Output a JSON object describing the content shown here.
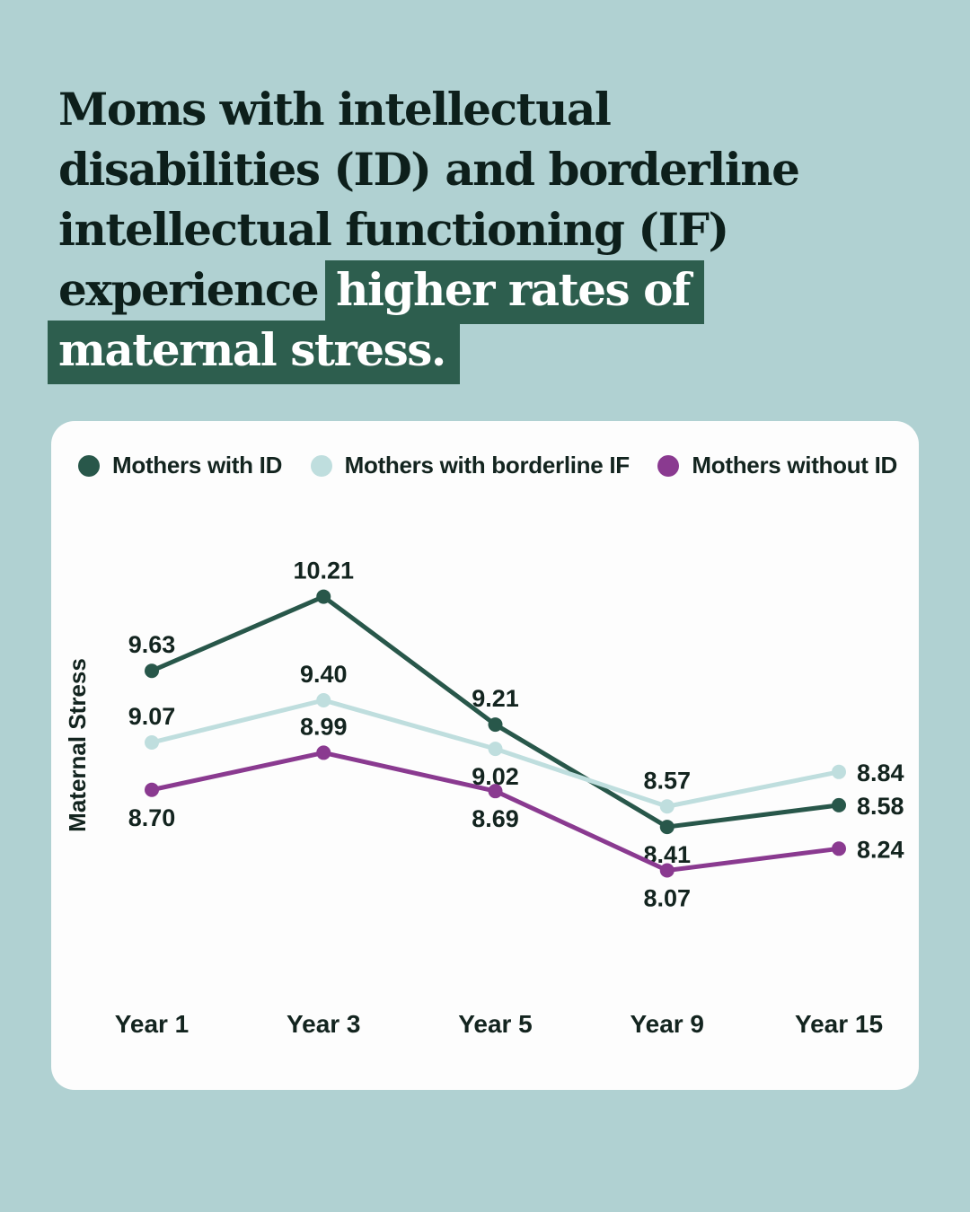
{
  "colors": {
    "background": "#b0d1d2",
    "card": "#fdfdfd",
    "ink": "#0d1f1b",
    "highlight": "#2d5e4e"
  },
  "headline": {
    "line1": {
      "plain": "Moms with intellectual",
      "highlight": ""
    },
    "line2": {
      "plain": "disabilities (ID) and borderline",
      "highlight": ""
    },
    "line3": {
      "plain": "intellectual functioning (IF)",
      "highlight": ""
    },
    "line4": {
      "plain": "experience",
      "highlight": "higher rates of"
    },
    "line5": {
      "plain": "",
      "highlight": "maternal stress."
    }
  },
  "chart_data": {
    "type": "line",
    "title": "",
    "xlabel": "",
    "ylabel": "Maternal Stress",
    "categories": [
      "Year 1",
      "Year 3",
      "Year 5",
      "Year 9",
      "Year 15"
    ],
    "ylim": [
      7.8,
      10.6
    ],
    "grid": false,
    "legend_position": "top",
    "series": [
      {
        "name": "Mothers with ID",
        "color": "#28574a",
        "values": [
          9.63,
          10.21,
          9.21,
          8.41,
          8.58
        ],
        "label_pos": [
          "above",
          "above",
          "above",
          "below",
          "right"
        ]
      },
      {
        "name": "Mothers with borderline IF",
        "color": "#bfdede",
        "values": [
          9.07,
          9.4,
          9.02,
          8.57,
          8.84
        ],
        "label_pos": [
          "above",
          "above",
          "below",
          "above",
          "right"
        ]
      },
      {
        "name": "Mothers without ID",
        "color": "#8a3a90",
        "values": [
          8.7,
          8.99,
          8.69,
          8.07,
          8.24
        ],
        "label_pos": [
          "below",
          "above",
          "below",
          "below",
          "right"
        ]
      }
    ]
  }
}
